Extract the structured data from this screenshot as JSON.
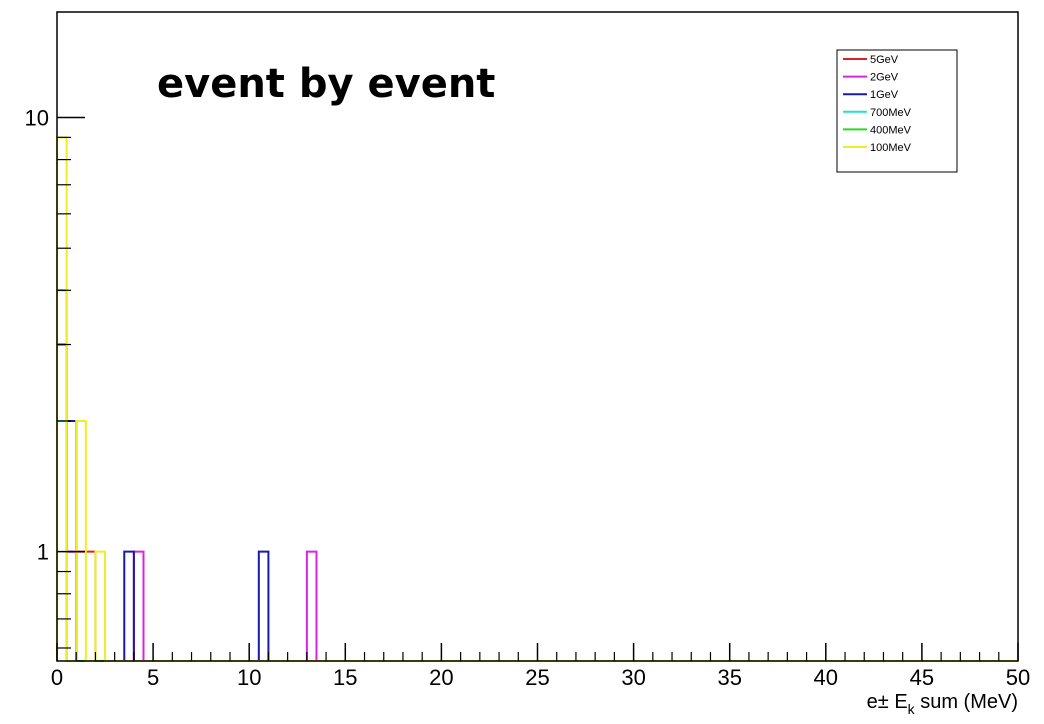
{
  "chart_data": {
    "type": "histogram",
    "title": "event by event",
    "xlabel": "e± E_k sum (MeV)",
    "xlabel_parts": {
      "prefix": "e± E",
      "subscript": "k",
      "suffix": " sum (MeV)"
    },
    "ylabel": "",
    "xlim": [
      0,
      50
    ],
    "ylim": [
      0.56,
      17.5
    ],
    "y_scale": "log",
    "x_ticks": [
      "0",
      "5",
      "10",
      "15",
      "20",
      "25",
      "30",
      "35",
      "40",
      "45",
      "50"
    ],
    "y_ticks": [
      "1",
      "10"
    ],
    "bin_width": 0.5,
    "grid": false,
    "legend_position": "top-right",
    "series": [
      {
        "name": "5GeV",
        "color": "#dd2222",
        "bins": [
          {
            "x": 0.0,
            "y": 2
          },
          {
            "x": 0.5,
            "y": 1
          },
          {
            "x": 1.0,
            "y": 1
          },
          {
            "x": 1.5,
            "y": 1
          }
        ]
      },
      {
        "name": "2GeV",
        "color": "#dd22dd",
        "bins": [
          {
            "x": 0.0,
            "y": 2
          },
          {
            "x": 0.5,
            "y": 1
          },
          {
            "x": 4.0,
            "y": 1
          },
          {
            "x": 13.0,
            "y": 1
          }
        ]
      },
      {
        "name": "1GeV",
        "color": "#1a1aaa",
        "bins": [
          {
            "x": 0.0,
            "y": 3
          },
          {
            "x": 0.5,
            "y": 2
          },
          {
            "x": 3.5,
            "y": 1
          },
          {
            "x": 10.5,
            "y": 1
          }
        ]
      },
      {
        "name": "700MeV",
        "color": "#22dddd",
        "bins": [
          {
            "x": 0.0,
            "y": 2
          }
        ]
      },
      {
        "name": "400MeV",
        "color": "#22dd22",
        "bins": [
          {
            "x": 0.0,
            "y": 4
          }
        ]
      },
      {
        "name": "100MeV",
        "color": "#eeee22",
        "bins": [
          {
            "x": 0.0,
            "y": 9
          },
          {
            "x": 1.0,
            "y": 2
          },
          {
            "x": 2.0,
            "y": 1
          }
        ]
      }
    ]
  }
}
